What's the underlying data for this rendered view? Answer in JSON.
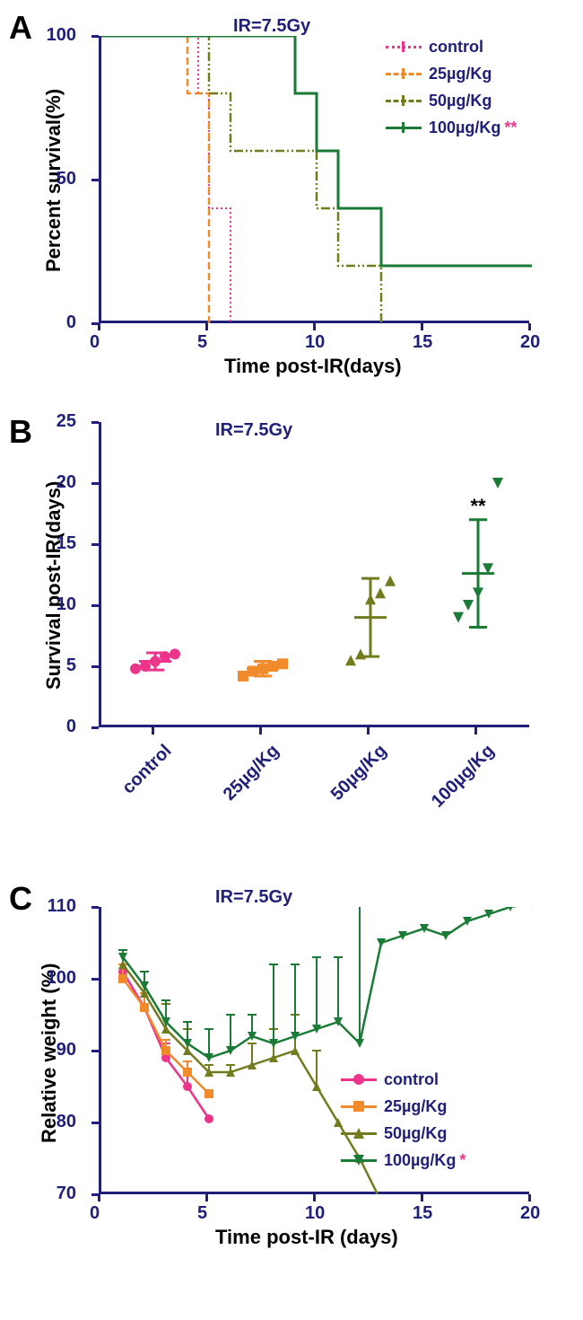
{
  "panelA": {
    "label": "A",
    "type": "survival-step",
    "subtitle": "IR=7.5Gy",
    "xlabel": "Time post-IR(days)",
    "ylabel": "Percent survival(%)",
    "xlim": [
      0,
      20
    ],
    "ylim": [
      0,
      100
    ],
    "xticks": [
      0,
      5,
      10,
      15,
      20
    ],
    "yticks": [
      0,
      50,
      100
    ],
    "axis_color": "#20207a",
    "tick_fontsize": 20,
    "label_fontsize": 22,
    "series": [
      {
        "name": "control",
        "color": "#ec348b",
        "dash": "2,3",
        "width": 2,
        "steps": [
          [
            0,
            100
          ],
          [
            4.5,
            100
          ],
          [
            4.5,
            80
          ],
          [
            5,
            80
          ],
          [
            5,
            40
          ],
          [
            6,
            40
          ],
          [
            6,
            0
          ]
        ]
      },
      {
        "name": "25µg/Kg",
        "color": "#f08a2a",
        "dash": "8,4",
        "width": 2.5,
        "steps": [
          [
            0,
            100
          ],
          [
            4,
            100
          ],
          [
            4,
            80
          ],
          [
            5,
            80
          ],
          [
            5,
            0
          ]
        ]
      },
      {
        "name": "50µg/Kg",
        "color": "#727b1e",
        "dash": "10,3,2,3,2,3",
        "width": 2.5,
        "steps": [
          [
            0,
            100
          ],
          [
            5,
            100
          ],
          [
            5,
            80
          ],
          [
            6,
            80
          ],
          [
            6,
            60
          ],
          [
            10,
            60
          ],
          [
            10,
            40
          ],
          [
            11,
            40
          ],
          [
            11,
            20
          ],
          [
            13,
            20
          ],
          [
            13,
            0
          ]
        ]
      },
      {
        "name": "100µg/Kg",
        "color": "#1b7a36",
        "dash": "",
        "width": 3,
        "sig": "**",
        "steps": [
          [
            0,
            100
          ],
          [
            9,
            100
          ],
          [
            9,
            80
          ],
          [
            10,
            80
          ],
          [
            10,
            60
          ],
          [
            11,
            60
          ],
          [
            11,
            40
          ],
          [
            13,
            40
          ],
          [
            13,
            20
          ],
          [
            20,
            20
          ]
        ]
      }
    ],
    "legend_pos": "top-right"
  },
  "panelB": {
    "label": "B",
    "type": "scatter-errorbar",
    "subtitle": "IR=7.5Gy",
    "xlabel": "",
    "ylabel": "Survival post-IR(days)",
    "ylim": [
      0,
      25
    ],
    "yticks": [
      0,
      5,
      10,
      15,
      20,
      25
    ],
    "categories": [
      "control",
      "25µg/Kg",
      "50µg/Kg",
      "100µg/Kg"
    ],
    "groups": [
      {
        "color": "#ec348b",
        "marker": "circle",
        "mean": 5.4,
        "err": 0.7,
        "points": [
          4.8,
          5.0,
          5.4,
          5.8,
          6.0
        ],
        "sig": ""
      },
      {
        "color": "#f08a2a",
        "marker": "square",
        "mean": 4.8,
        "err": 0.6,
        "points": [
          4.2,
          4.6,
          4.8,
          5.0,
          5.2
        ],
        "sig": ""
      },
      {
        "color": "#727b1e",
        "marker": "triangle-up",
        "mean": 9.0,
        "err": 3.2,
        "points": [
          5.5,
          6.0,
          10.5,
          11.0,
          12.0
        ],
        "sig": ""
      },
      {
        "color": "#1b7a36",
        "marker": "triangle-down",
        "mean": 12.6,
        "err": 4.4,
        "points": [
          9.0,
          10.0,
          11.0,
          13.0,
          20.0
        ],
        "sig": "**"
      }
    ],
    "axis_color": "#20207a"
  },
  "panelC": {
    "label": "C",
    "type": "line-errorbar",
    "subtitle": "IR=7.5Gy",
    "xlabel": "Time post-IR (days)",
    "ylabel": "Relative weight (%)",
    "xlim": [
      0,
      20
    ],
    "ylim": [
      70,
      110
    ],
    "xticks": [
      0,
      5,
      10,
      15,
      20
    ],
    "yticks": [
      70,
      80,
      90,
      100,
      110
    ],
    "axis_color": "#20207a",
    "series": [
      {
        "name": "control",
        "color": "#ec348b",
        "marker": "circle",
        "x": [
          1,
          2,
          3,
          4,
          5
        ],
        "y": [
          101,
          96,
          89,
          85,
          80.5
        ],
        "err": [
          3,
          2,
          2,
          2,
          0
        ]
      },
      {
        "name": "25µg/Kg",
        "color": "#f08a2a",
        "marker": "square",
        "x": [
          1,
          2,
          3,
          4,
          5
        ],
        "y": [
          100,
          96,
          90,
          87,
          84
        ],
        "err": [
          2,
          2,
          1.5,
          1.5,
          0
        ]
      },
      {
        "name": "50µg/Kg",
        "color": "#727b1e",
        "marker": "triangle-up",
        "x": [
          1,
          2,
          3,
          4,
          5,
          6,
          7,
          8,
          9,
          10,
          11,
          12,
          13
        ],
        "y": [
          102,
          98,
          93,
          90,
          87,
          87,
          88,
          89,
          90,
          85,
          80,
          75,
          69
        ],
        "err": [
          2,
          3,
          3.5,
          3,
          1,
          1,
          3,
          4,
          5,
          5,
          0,
          0,
          0
        ]
      },
      {
        "name": "100µg/Kg",
        "color": "#1b7a36",
        "marker": "triangle-down",
        "sig": "*",
        "x": [
          1,
          2,
          3,
          4,
          5,
          6,
          7,
          8,
          9,
          10,
          11,
          12,
          13,
          14,
          15,
          16,
          17,
          18,
          19,
          20
        ],
        "y": [
          103,
          99,
          94,
          91,
          89,
          90,
          92,
          91,
          92,
          93,
          94,
          91,
          105,
          106,
          107,
          106,
          108,
          109,
          110,
          110.5
        ],
        "err": [
          1,
          2,
          3,
          3,
          4,
          5,
          3,
          11,
          10,
          10,
          9,
          20,
          0,
          0,
          0,
          0,
          0,
          0,
          0,
          0
        ]
      }
    ],
    "legend_pos": "mid-right"
  }
}
